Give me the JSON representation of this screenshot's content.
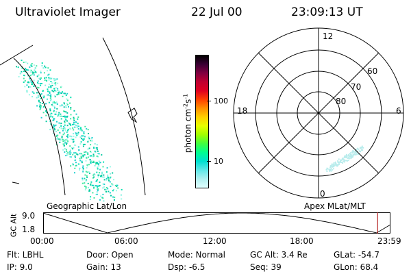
{
  "header": {
    "title": "Ultraviolet Imager",
    "date": "22 Jul 00",
    "time": "23:09:13 UT"
  },
  "panels": {
    "left_label": "Geographic Lat/Lon",
    "right_label": "Apex MLat/MLT"
  },
  "colorbar": {
    "unit_text": "photon cm",
    "unit_exp1": "-2",
    "unit_s": "s",
    "unit_exp2": "-1",
    "tick_100": "100",
    "tick_10": "10",
    "colors": [
      "#000000",
      "#3a0033",
      "#800040",
      "#c00030",
      "#e00020",
      "#ff4000",
      "#ff9000",
      "#ffd000",
      "#e8ff00",
      "#a0ff00",
      "#40ff40",
      "#00ff90",
      "#00e0d0",
      "#60e8e8",
      "#b0f0f0",
      "#e0ffff"
    ]
  },
  "polar": {
    "mlt_labels": {
      "top": "12",
      "bottom": "0",
      "left": "18",
      "right": "6"
    },
    "lat_labels": [
      "60",
      "70",
      "80"
    ]
  },
  "altplot": {
    "ylabel": "GC Alt",
    "y_ticks": [
      "9.0",
      "1.8"
    ],
    "x_ticks": [
      "00:00",
      "06:00",
      "12:00",
      "18:00",
      "23:59"
    ],
    "marker_time_fraction": 0.963,
    "marker_color": "#aa0000"
  },
  "info": {
    "flt": "Flt: LBHL",
    "ip": "IP:  9.0",
    "door": "Door: Open",
    "gain": "Gain: 13",
    "mode": "Mode: Normal",
    "dsp": "Dsp:    -6.5",
    "gcalt": "GC Alt: 3.4 Re",
    "seq": "Seq: 39",
    "glat": "GLat:  -54.7",
    "glon": "GLon:  68.4"
  }
}
